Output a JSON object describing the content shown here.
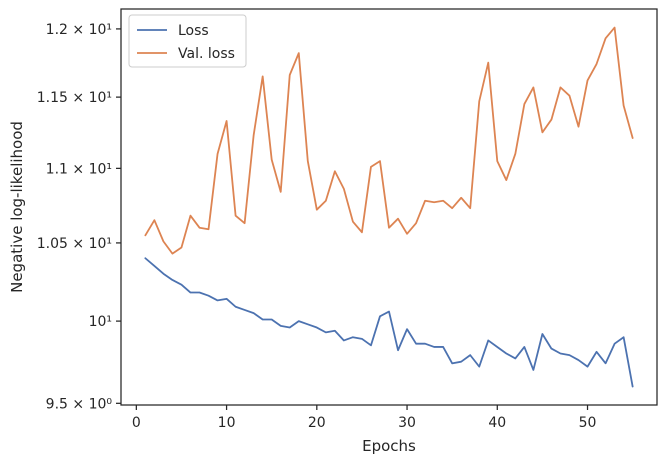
{
  "chart_data": {
    "type": "line",
    "xlabel": "Epochs",
    "ylabel": "Negative log-likelihood",
    "y_scale": "log",
    "xlim": [
      -1.7,
      57.7
    ],
    "ylim": [
      9.49,
      12.15
    ],
    "x_ticks": [
      0,
      10,
      20,
      30,
      40,
      50
    ],
    "x_tick_labels": [
      "0",
      "10",
      "20",
      "30",
      "40",
      "50"
    ],
    "y_ticks": [
      9.5,
      10.0,
      10.5,
      11.0,
      11.5,
      12.0
    ],
    "y_tick_labels": [
      "9.5 × 10⁰",
      "10¹",
      "1.05 × 10¹",
      "1.1 × 10¹",
      "1.15 × 10¹",
      "1.2 × 10¹"
    ],
    "grid": false,
    "legend_position": "top-left",
    "series": [
      {
        "name": "Loss",
        "color": "#4c72b0",
        "x": [
          1,
          2,
          3,
          4,
          5,
          6,
          7,
          8,
          9,
          10,
          11,
          12,
          13,
          14,
          15,
          16,
          17,
          18,
          19,
          20,
          21,
          22,
          23,
          24,
          25,
          26,
          27,
          28,
          29,
          30,
          31,
          32,
          33,
          34,
          35,
          36,
          37,
          38,
          39,
          40,
          41,
          42,
          43,
          44,
          45,
          46,
          47,
          48,
          49,
          50,
          51,
          52,
          53,
          54,
          55
        ],
        "values": [
          10.4,
          10.35,
          10.3,
          10.26,
          10.23,
          10.18,
          10.18,
          10.16,
          10.13,
          10.14,
          10.09,
          10.07,
          10.05,
          10.01,
          10.01,
          9.97,
          9.96,
          10.0,
          9.98,
          9.96,
          9.93,
          9.94,
          9.88,
          9.9,
          9.89,
          9.85,
          10.03,
          10.06,
          9.82,
          9.95,
          9.86,
          9.86,
          9.84,
          9.84,
          9.74,
          9.75,
          9.79,
          9.72,
          9.88,
          9.84,
          9.8,
          9.77,
          9.84,
          9.7,
          9.92,
          9.83,
          9.8,
          9.79,
          9.76,
          9.72,
          9.81,
          9.74,
          9.86,
          9.9,
          9.6
        ]
      },
      {
        "name": "Val. loss",
        "color": "#dd8452",
        "x": [
          1,
          2,
          3,
          4,
          5,
          6,
          7,
          8,
          9,
          10,
          11,
          12,
          13,
          14,
          15,
          16,
          17,
          18,
          19,
          20,
          21,
          22,
          23,
          24,
          25,
          26,
          27,
          28,
          29,
          30,
          31,
          32,
          33,
          34,
          35,
          36,
          37,
          38,
          39,
          40,
          41,
          42,
          43,
          44,
          45,
          46,
          47,
          48,
          49,
          50,
          51,
          52,
          53,
          54,
          55
        ],
        "values": [
          10.55,
          10.65,
          10.51,
          10.43,
          10.47,
          10.68,
          10.6,
          10.59,
          11.1,
          11.33,
          10.68,
          10.63,
          11.23,
          11.65,
          11.06,
          10.84,
          11.66,
          11.82,
          11.05,
          10.72,
          10.78,
          10.98,
          10.86,
          10.64,
          10.57,
          11.01,
          11.05,
          10.6,
          10.66,
          10.56,
          10.63,
          10.78,
          10.77,
          10.78,
          10.73,
          10.8,
          10.73,
          11.47,
          11.75,
          11.05,
          10.92,
          11.1,
          11.45,
          11.57,
          11.25,
          11.34,
          11.57,
          11.51,
          11.29,
          11.62,
          11.74,
          11.93,
          12.01,
          11.44,
          11.21
        ]
      }
    ]
  }
}
